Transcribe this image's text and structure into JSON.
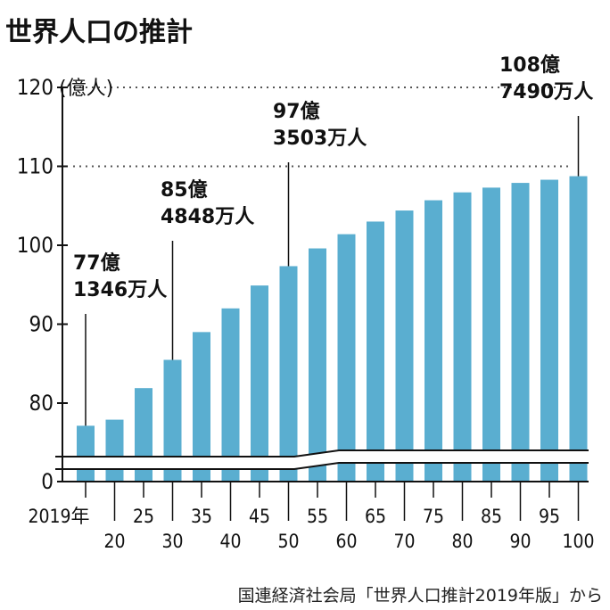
{
  "chart_data": {
    "type": "bar",
    "title": "世界人口の推計",
    "ylabel": "(億人)",
    "y_ticks": [
      "0",
      "80",
      "90",
      "100",
      "110",
      "120"
    ],
    "ylim": [
      70,
      120
    ],
    "axis_break": true,
    "bar_color": "#5aaed0",
    "categories": [
      "2019年",
      "20",
      "25",
      "30",
      "35",
      "40",
      "45",
      "50",
      "55",
      "60",
      "65",
      "70",
      "75",
      "80",
      "85",
      "90",
      "95",
      "100"
    ],
    "values": [
      77.13,
      77.9,
      81.9,
      85.48,
      89.0,
      92.0,
      94.9,
      97.35,
      99.6,
      101.4,
      103.0,
      104.4,
      105.7,
      106.7,
      107.3,
      107.9,
      108.3,
      108.75
    ],
    "annotations": [
      {
        "index": 0,
        "line1": "77億",
        "line2": "1346万人"
      },
      {
        "index": 3,
        "line1": "85億",
        "line2": "4848万人"
      },
      {
        "index": 7,
        "line1": "97億",
        "line2": "3503万人"
      },
      {
        "index": 17,
        "line1": "108億",
        "line2": "7490万人"
      }
    ],
    "gridlines": [
      110,
      120
    ]
  },
  "source": "国連経済社会局「世界人口推計2019年版」から"
}
